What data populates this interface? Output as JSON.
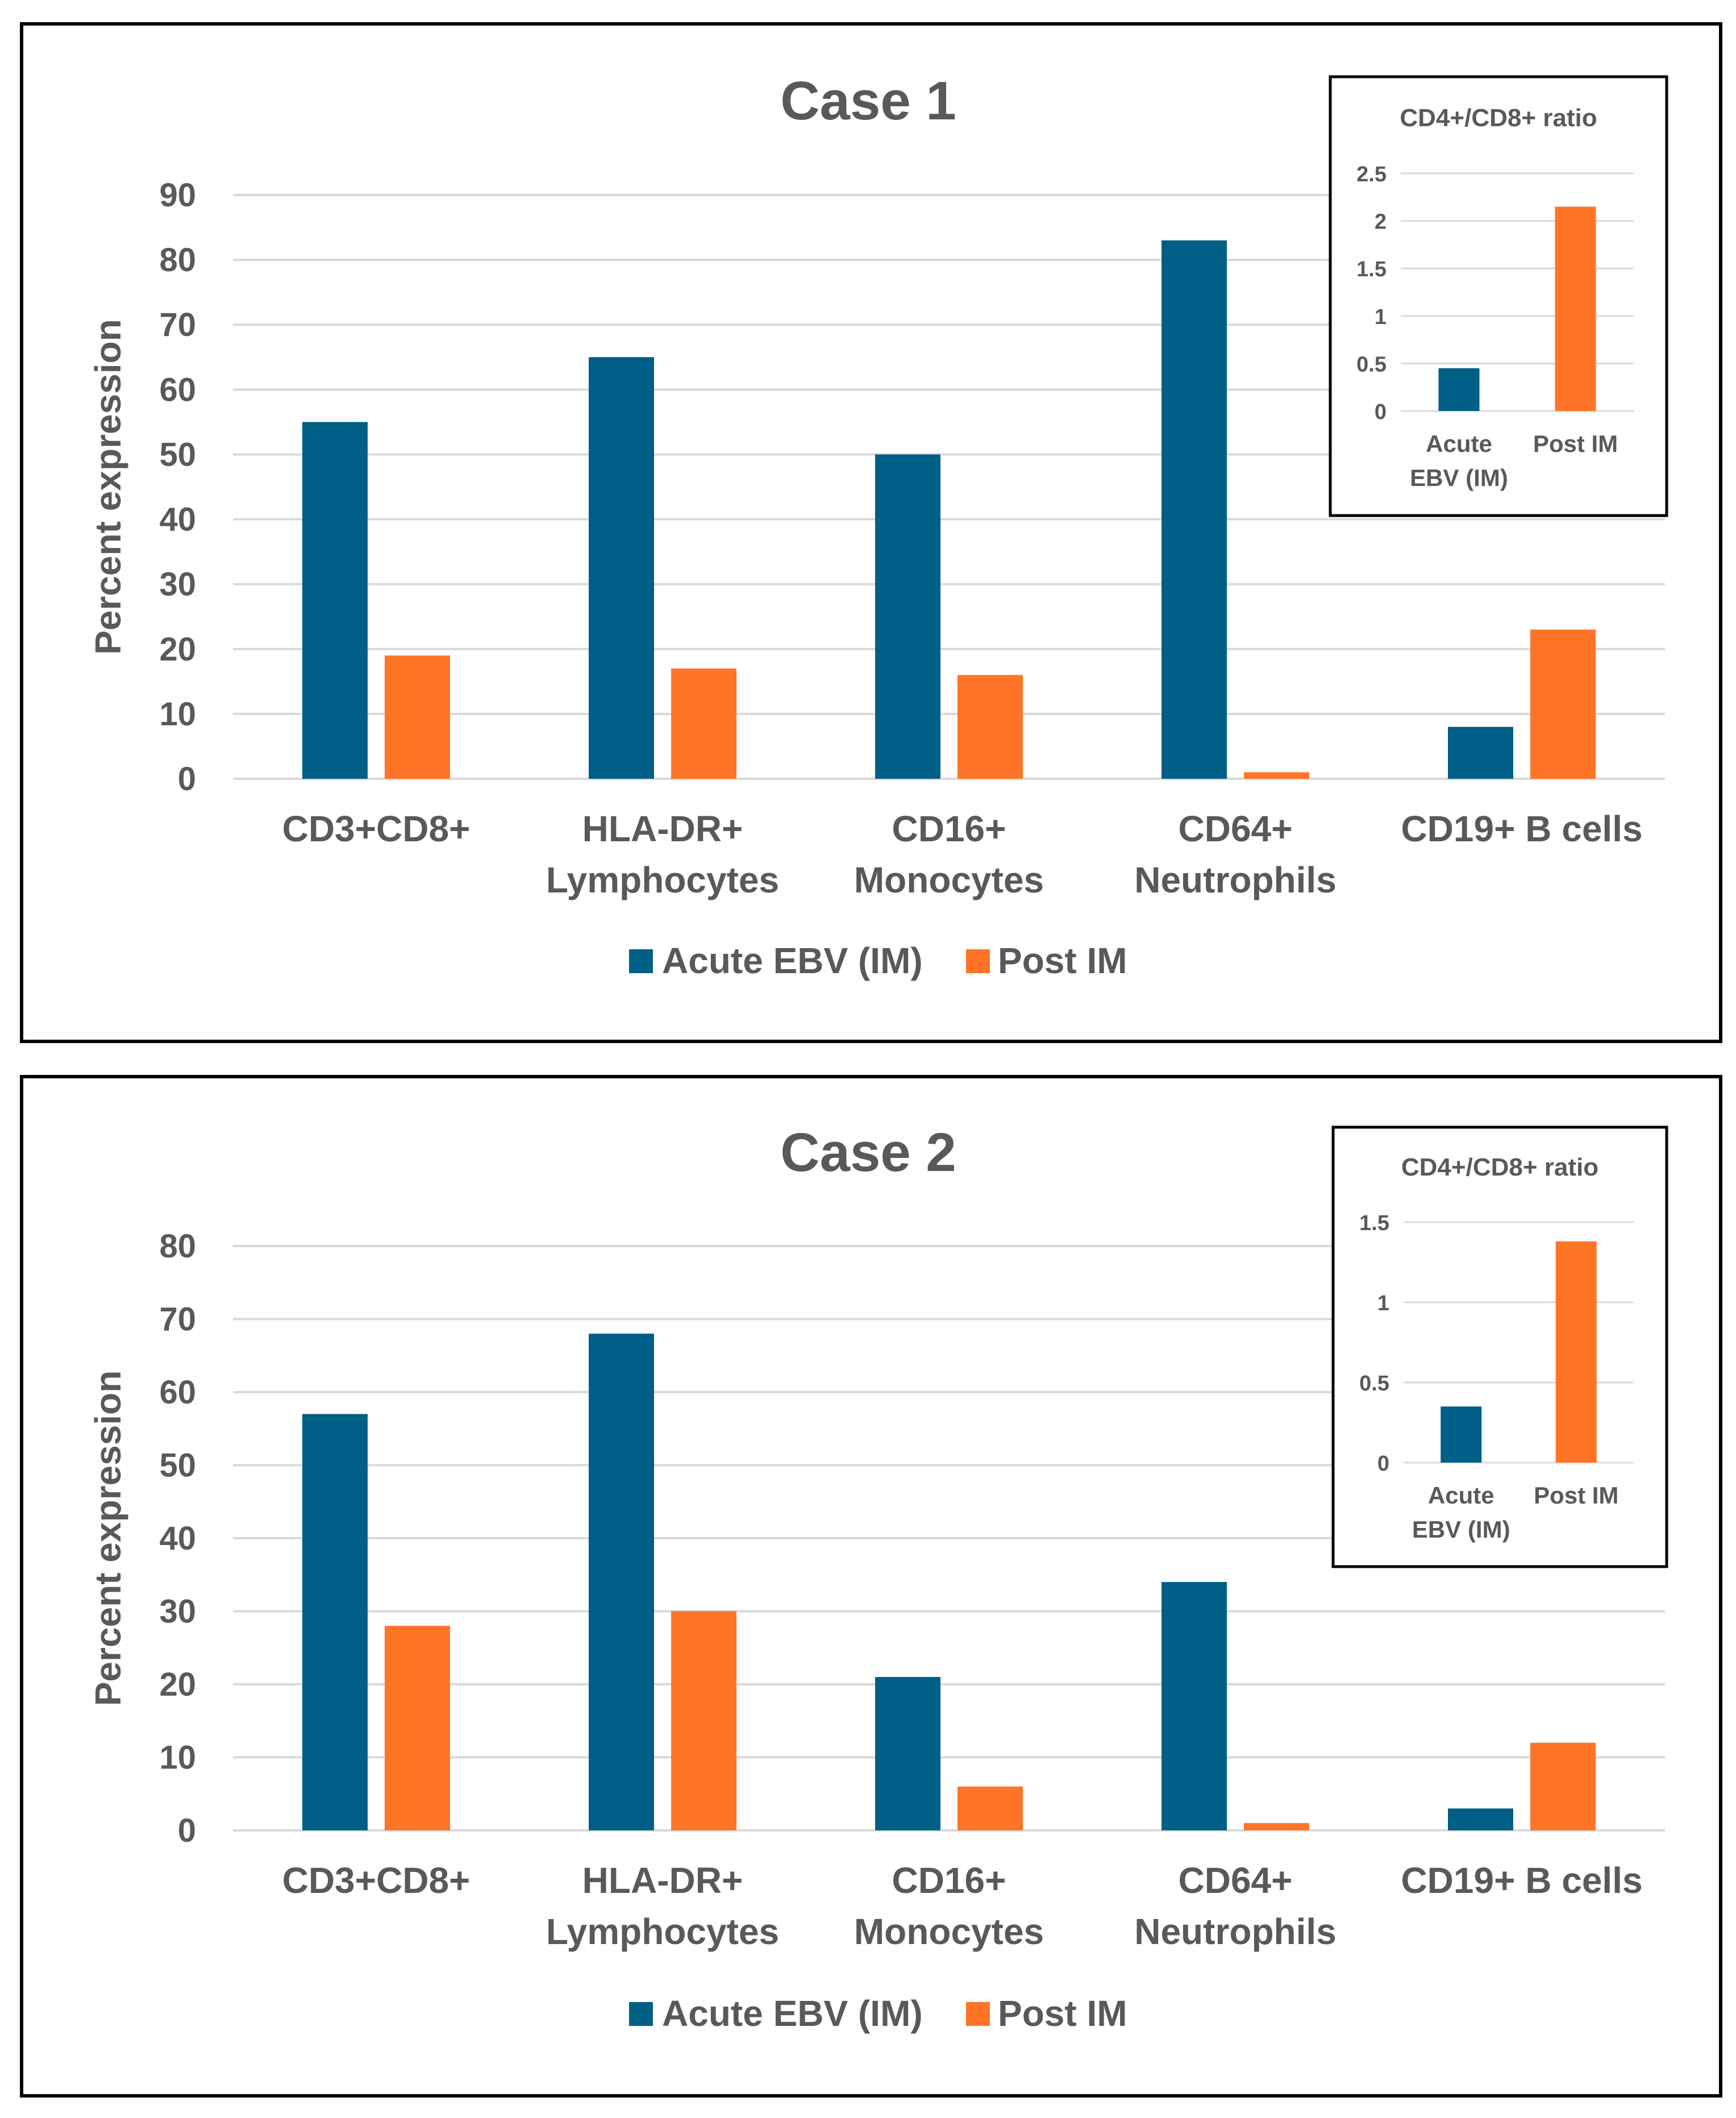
{
  "colors": {
    "acute": "#005F86",
    "post": "#FF7427",
    "grid": "#D9D9D9",
    "text": "#595959",
    "border": "#000000"
  },
  "legend": {
    "acute": "Acute EBV (IM)",
    "post": "Post IM"
  },
  "chart_data": [
    {
      "type": "bar",
      "title": "Case 1",
      "ylabel": "Percent expression",
      "xlabel": "",
      "ylim": [
        0,
        90
      ],
      "yticks": [
        "0",
        "10",
        "20",
        "30",
        "40",
        "50",
        "60",
        "70",
        "80",
        "90"
      ],
      "categories": [
        [
          "CD3+CD8+"
        ],
        [
          "HLA-DR+",
          "Lymphocytes"
        ],
        [
          "CD16+",
          "Monocytes"
        ],
        [
          "CD64+",
          "Neutrophils"
        ],
        [
          "CD19+ B cells"
        ]
      ],
      "series": [
        {
          "name": "Acute EBV (IM)",
          "values": [
            55,
            65,
            50,
            83,
            8
          ]
        },
        {
          "name": "Post IM",
          "values": [
            19,
            17,
            16,
            1,
            23
          ]
        }
      ],
      "inset": {
        "type": "bar",
        "title": "CD4+/CD8+ ratio",
        "ylim": [
          0,
          2.5
        ],
        "yticks": [
          "0",
          "0.5",
          "1",
          "1.5",
          "2",
          "2.5"
        ],
        "categories": [
          [
            "Acute",
            "EBV (IM)"
          ],
          [
            "Post IM"
          ]
        ],
        "values": [
          0.45,
          2.15
        ]
      }
    },
    {
      "type": "bar",
      "title": "Case 2",
      "ylabel": "Percent expression",
      "xlabel": "",
      "ylim": [
        0,
        80
      ],
      "yticks": [
        "0",
        "10",
        "20",
        "30",
        "40",
        "50",
        "60",
        "70",
        "80"
      ],
      "categories": [
        [
          "CD3+CD8+"
        ],
        [
          "HLA-DR+",
          "Lymphocytes"
        ],
        [
          "CD16+",
          "Monocytes"
        ],
        [
          "CD64+",
          "Neutrophils"
        ],
        [
          "CD19+ B cells"
        ]
      ],
      "series": [
        {
          "name": "Acute EBV (IM)",
          "values": [
            57,
            68,
            21,
            34,
            3
          ]
        },
        {
          "name": "Post IM",
          "values": [
            28,
            30,
            6,
            1,
            12
          ]
        }
      ],
      "inset": {
        "type": "bar",
        "title": "CD4+/CD8+ ratio",
        "ylim": [
          0,
          1.5
        ],
        "yticks": [
          "0",
          "0.5",
          "1",
          "1.5"
        ],
        "categories": [
          [
            "Acute",
            "EBV (IM)"
          ],
          [
            "Post IM"
          ]
        ],
        "values": [
          0.35,
          1.38
        ]
      }
    }
  ]
}
